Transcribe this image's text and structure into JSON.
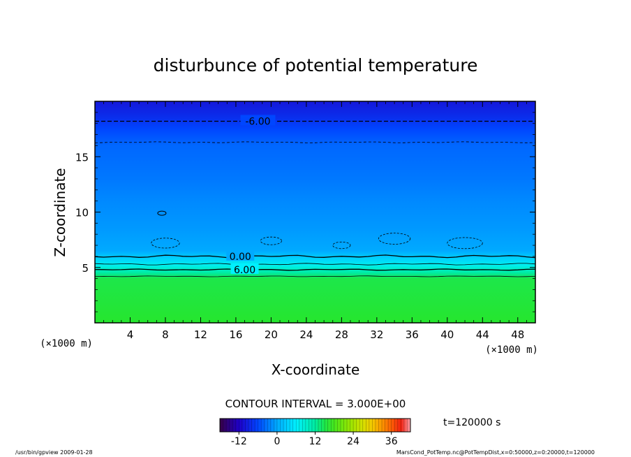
{
  "chart_data": {
    "type": "heatmap",
    "title": "disturbunce of potential temperature",
    "xlabel": "X-coordinate",
    "ylabel": "Z-coordinate",
    "x_unit": "(×1000 m)",
    "y_unit": "(×1000 m)",
    "xlim": [
      0,
      50
    ],
    "ylim": [
      0,
      20
    ],
    "x_ticks": [
      4,
      8,
      12,
      16,
      20,
      24,
      28,
      32,
      36,
      40,
      44,
      48
    ],
    "y_ticks": [
      5,
      10,
      15
    ],
    "contour_interval": "CONTOUR INTERVAL = 3.000E+00",
    "time_label": "t=120000 s",
    "colorbar": {
      "min": -18,
      "max": 42,
      "tick_values": [
        -12,
        0,
        12,
        24,
        36
      ],
      "tick_labels": [
        "-12",
        "0",
        "12",
        "24",
        "36"
      ]
    },
    "contour_labels": [
      {
        "text": "-6.00",
        "x": 18.5,
        "z": 18.2
      },
      {
        "text": "0.00",
        "x": 16.5,
        "z": 6.0
      },
      {
        "text": "6.00",
        "x": 17.0,
        "z": 4.8
      }
    ],
    "horizontal_profile": [
      {
        "z": 0.0,
        "value": 16
      },
      {
        "z": 4.0,
        "value": 15
      },
      {
        "z": 4.5,
        "value": 12
      },
      {
        "z": 5.2,
        "value": 7
      },
      {
        "z": 5.9,
        "value": 3
      },
      {
        "z": 6.5,
        "value": 0
      },
      {
        "z": 8.5,
        "value": -1
      },
      {
        "z": 11.0,
        "value": -2
      },
      {
        "z": 13.0,
        "value": -3
      },
      {
        "z": 16.0,
        "value": -4
      },
      {
        "z": 17.5,
        "value": -6
      },
      {
        "z": 18.5,
        "value": -8
      },
      {
        "z": 20.0,
        "value": -10
      }
    ]
  },
  "footer": {
    "left": "/usr/bin/gpview   2009-01-28",
    "right": "MarsCond_PotTemp.nc@PotTempDist,x=0:50000,z=0:20000,t=120000"
  },
  "colors": {
    "ground_green": "#2fe02f",
    "mid_cyan": "#00f0ff",
    "top_blue": "#0a78ff"
  }
}
